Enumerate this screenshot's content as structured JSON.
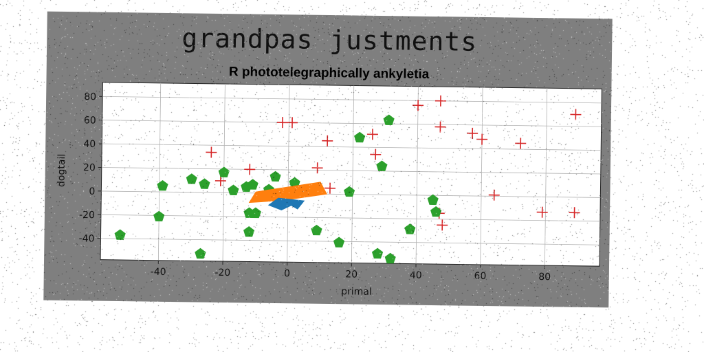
{
  "chart_data": {
    "type": "scatter",
    "title": "grandpas justments",
    "subtitle": "R phototelegraphically ankyletia",
    "xlabel": "primal",
    "ylabel": "dogtail",
    "xlim": [
      -58,
      97
    ],
    "ylim": [
      -58,
      92
    ],
    "xticks": [
      -40,
      -20,
      0,
      20,
      40,
      60,
      80
    ],
    "yticks": [
      80,
      60,
      40,
      20,
      0,
      -20,
      -40
    ],
    "grid": true,
    "series": [
      {
        "marker": "plus",
        "color": "#d62728",
        "points": [
          [
            -24,
            34
          ],
          [
            -21,
            10
          ],
          [
            -12,
            20
          ],
          [
            -2,
            60
          ],
          [
            1,
            60
          ],
          [
            9,
            22
          ],
          [
            12,
            45
          ],
          [
            13,
            5
          ],
          [
            26,
            51
          ],
          [
            27,
            34
          ],
          [
            40,
            76
          ],
          [
            47,
            80
          ],
          [
            47,
            58
          ],
          [
            47,
            -15
          ],
          [
            48,
            -25
          ],
          [
            57,
            53
          ],
          [
            60,
            48
          ],
          [
            64,
            1
          ],
          [
            72,
            45
          ],
          [
            79,
            -13
          ],
          [
            89,
            70
          ],
          [
            89,
            -13
          ]
        ]
      },
      {
        "marker": "pentagon",
        "color": "#2ca02c",
        "points": [
          [
            -52,
            -37
          ],
          [
            -40,
            -21
          ],
          [
            -39,
            5
          ],
          [
            -30,
            11
          ],
          [
            -26,
            7
          ],
          [
            -27,
            -52
          ],
          [
            -20,
            17
          ],
          [
            -17,
            2
          ],
          [
            -13,
            5
          ],
          [
            -11,
            7
          ],
          [
            -12,
            -17
          ],
          [
            -10,
            -17
          ],
          [
            -12,
            -33
          ],
          [
            -4,
            14
          ],
          [
            -6,
            3
          ],
          [
            2,
            9
          ],
          [
            5,
            2
          ],
          [
            9,
            -31
          ],
          [
            16,
            -41
          ],
          [
            19,
            2
          ],
          [
            22,
            48
          ],
          [
            28,
            -50
          ],
          [
            29,
            24
          ],
          [
            31,
            63
          ],
          [
            32,
            -54
          ],
          [
            38,
            -29
          ],
          [
            45,
            -4
          ],
          [
            46,
            -14
          ]
        ]
      },
      {
        "marker": "polygon",
        "color": "#ff7f0e",
        "polygon": [
          [
            -12,
            -8
          ],
          [
            -10,
            1
          ],
          [
            10,
            10
          ],
          [
            12,
            0
          ],
          [
            -2,
            -6
          ]
        ]
      },
      {
        "marker": "polygon",
        "color": "#1f77b4",
        "polygon": [
          [
            -6,
            -10
          ],
          [
            -2,
            -14
          ],
          [
            1,
            -10
          ],
          [
            3,
            -13
          ],
          [
            5,
            -6
          ],
          [
            -3,
            -4
          ]
        ]
      }
    ]
  }
}
